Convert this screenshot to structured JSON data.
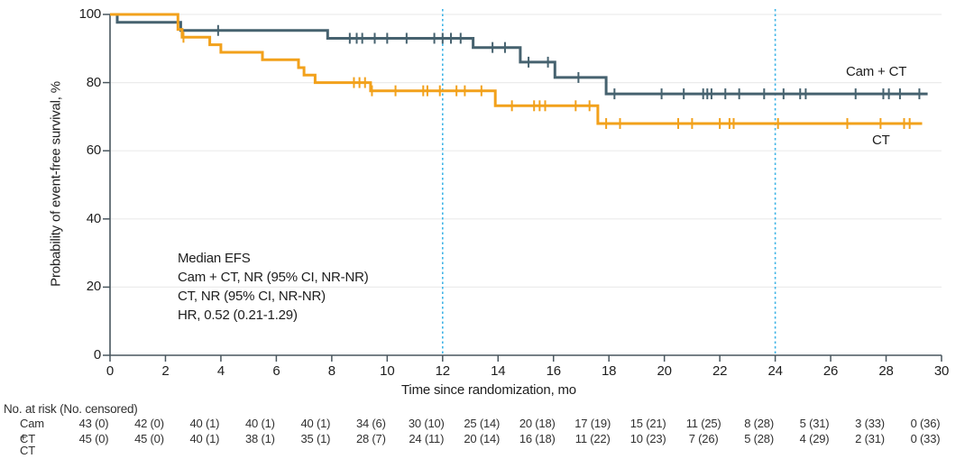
{
  "figure": {
    "annotation": {
      "lines": [
        "Median EFS",
        "Cam + CT, NR (95% CI, NR-NR)",
        "CT, NR (95% CI, NR-NR)",
        "HR, 0.52 (0.21-1.29)"
      ]
    },
    "risk_table": {
      "header": "No. at risk (No. censored)",
      "rows": [
        {
          "label": "Cam + CT",
          "values": [
            "43 (0)",
            "42 (0)",
            "40 (1)",
            "40 (1)",
            "40 (1)",
            "34 (6)",
            "30 (10)",
            "25 (14)",
            "20 (18)",
            "17 (19)",
            "15 (21)",
            "11 (25)",
            "8 (28)",
            "5 (31)",
            "3 (33)",
            "0 (36)"
          ]
        },
        {
          "label": "CT",
          "values": [
            "45 (0)",
            "45 (0)",
            "40 (1)",
            "38 (1)",
            "35 (1)",
            "28 (7)",
            "24 (11)",
            "20 (14)",
            "16 (18)",
            "11 (22)",
            "10 (23)",
            "7 (26)",
            "5 (28)",
            "4 (29)",
            "2 (31)",
            "0 (33)"
          ]
        }
      ]
    }
  },
  "chart_data": {
    "type": "line",
    "subtype": "kaplan-meier-step",
    "title": "",
    "x_axis": {
      "label": "Time since randomization, mo",
      "range": [
        0,
        30
      ],
      "ticks": [
        0,
        2,
        4,
        6,
        8,
        10,
        12,
        14,
        16,
        18,
        20,
        22,
        24,
        26,
        28,
        30
      ]
    },
    "y_axis": {
      "label": "Probability of event-free survival, %",
      "range": [
        0,
        100
      ],
      "ticks": [
        0,
        20,
        40,
        60,
        80,
        100
      ]
    },
    "grid": "horizontal",
    "legend_position": "curve-end-labels",
    "reference_lines": {
      "x_values": [
        12,
        24
      ],
      "style": "dotted"
    },
    "colors": {
      "series_cam_ct": "#46626F",
      "series_ct": "#F2A11B",
      "reference_line": "#3FB4E6",
      "gridline": "#ECECEC",
      "axis": "#49565E"
    },
    "series": [
      {
        "name": "Cam + CT",
        "color": "#46626F",
        "steps": [
          [
            0,
            100
          ],
          [
            0.26,
            97.7
          ],
          [
            2.55,
            95.3
          ],
          [
            7.85,
            93.0
          ],
          [
            13.1,
            90.3
          ],
          [
            14.8,
            86.0
          ],
          [
            16.05,
            81.5
          ],
          [
            17.9,
            76.7
          ],
          [
            29.5,
            76.7
          ]
        ],
        "censor_marks": [
          [
            3.9,
            95.3
          ],
          [
            8.65,
            93
          ],
          [
            8.9,
            93
          ],
          [
            9.1,
            93
          ],
          [
            9.55,
            93
          ],
          [
            10.0,
            93
          ],
          [
            10.7,
            93
          ],
          [
            11.7,
            93
          ],
          [
            12.0,
            93
          ],
          [
            12.3,
            93
          ],
          [
            12.65,
            93
          ],
          [
            13.8,
            90.3
          ],
          [
            14.25,
            90.3
          ],
          [
            15.1,
            86
          ],
          [
            15.8,
            86
          ],
          [
            16.9,
            81.5
          ],
          [
            18.2,
            76.7
          ],
          [
            19.9,
            76.7
          ],
          [
            20.7,
            76.7
          ],
          [
            21.4,
            76.7
          ],
          [
            21.55,
            76.7
          ],
          [
            21.7,
            76.7
          ],
          [
            22.2,
            76.7
          ],
          [
            22.7,
            76.7
          ],
          [
            23.6,
            76.7
          ],
          [
            24.3,
            76.7
          ],
          [
            24.9,
            76.7
          ],
          [
            25.1,
            76.7
          ],
          [
            26.9,
            76.7
          ],
          [
            27.9,
            76.7
          ],
          [
            28.1,
            76.7
          ],
          [
            28.5,
            76.7
          ],
          [
            29.2,
            76.7
          ]
        ]
      },
      {
        "name": "CT",
        "color": "#F2A11B",
        "steps": [
          [
            0,
            100
          ],
          [
            2.45,
            95.6
          ],
          [
            2.6,
            93.3
          ],
          [
            3.6,
            91.1
          ],
          [
            4.0,
            88.9
          ],
          [
            5.5,
            86.7
          ],
          [
            6.8,
            84.4
          ],
          [
            7.0,
            82.2
          ],
          [
            7.4,
            80.0
          ],
          [
            9.4,
            77.6
          ],
          [
            13.9,
            73.2
          ],
          [
            17.6,
            68.0
          ],
          [
            29.3,
            68.0
          ]
        ],
        "censor_marks": [
          [
            2.65,
            93.3
          ],
          [
            8.8,
            80
          ],
          [
            9.0,
            80
          ],
          [
            9.2,
            80
          ],
          [
            9.45,
            77.6
          ],
          [
            10.3,
            77.6
          ],
          [
            11.3,
            77.6
          ],
          [
            11.45,
            77.6
          ],
          [
            11.9,
            77.6
          ],
          [
            12.5,
            77.6
          ],
          [
            12.8,
            77.6
          ],
          [
            13.4,
            77.6
          ],
          [
            14.5,
            73.2
          ],
          [
            15.3,
            73.2
          ],
          [
            15.5,
            73.2
          ],
          [
            15.7,
            73.2
          ],
          [
            16.8,
            73.2
          ],
          [
            17.3,
            73.2
          ],
          [
            17.9,
            68
          ],
          [
            18.4,
            68
          ],
          [
            20.5,
            68
          ],
          [
            21.0,
            68
          ],
          [
            22.0,
            68
          ],
          [
            22.35,
            68
          ],
          [
            22.5,
            68
          ],
          [
            24.1,
            68
          ],
          [
            26.6,
            68
          ],
          [
            27.8,
            68
          ],
          [
            28.65,
            68
          ],
          [
            28.85,
            68
          ]
        ]
      }
    ]
  }
}
